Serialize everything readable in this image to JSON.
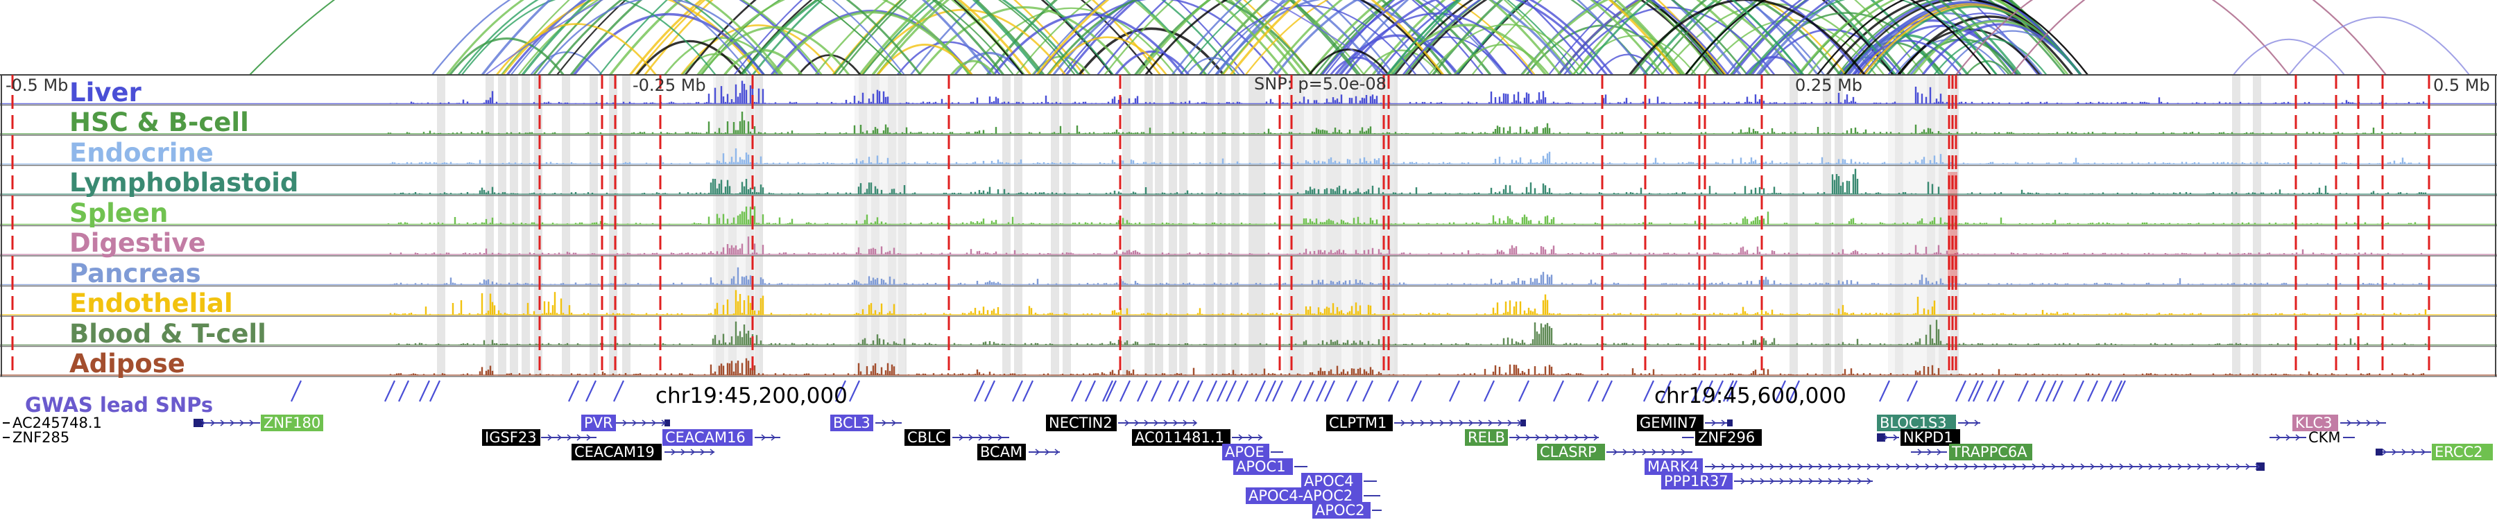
{
  "axis": {
    "ticks": [
      "-0.5 Mb",
      "-0.25 Mb",
      "SNP: p=5.0e-08",
      "0.25 Mb",
      "0.5 Mb"
    ]
  },
  "chromosome_labels": [
    "chr19:45,200,000",
    "chr19:45,600,000"
  ],
  "tracks": [
    {
      "name": "Liver",
      "color": "#4a4fd6"
    },
    {
      "name": "HSC & B-cell",
      "color": "#4f9a44"
    },
    {
      "name": "Endocrine",
      "color": "#8fb7ea"
    },
    {
      "name": "Lymphoblastoid",
      "color": "#3a8a72"
    },
    {
      "name": "Spleen",
      "color": "#70c250"
    },
    {
      "name": "Digestive",
      "color": "#c27ca4"
    },
    {
      "name": "Pancreas",
      "color": "#7f9bd6"
    },
    {
      "name": "Endothelial",
      "color": "#f2c20f"
    },
    {
      "name": "Blood & T-cell",
      "color": "#5f8a55"
    },
    {
      "name": "Adipose",
      "color": "#a34e2e"
    }
  ],
  "snp_track": {
    "label": "GWAS lead SNPs",
    "color": "#6a5acd"
  },
  "genes": [
    {
      "name": "AC245748.1",
      "style": "plain"
    },
    {
      "name": "ZNF285",
      "style": "plain"
    },
    {
      "name": "ZNF180",
      "style": "green",
      "bg": "#6fc14f"
    },
    {
      "name": "IGSF23",
      "style": "dark"
    },
    {
      "name": "PVR",
      "style": "blue",
      "bg": "#5b4fd9"
    },
    {
      "name": "CEACAM19",
      "style": "dark"
    },
    {
      "name": "CEACAM16",
      "style": "blue",
      "bg": "#5b4fd9"
    },
    {
      "name": "BCL3",
      "style": "blue",
      "bg": "#5b4fd9"
    },
    {
      "name": "CBLC",
      "style": "dark"
    },
    {
      "name": "BCAM",
      "style": "dark"
    },
    {
      "name": "NECTIN2",
      "style": "dark"
    },
    {
      "name": "AC011481.1",
      "style": "dark"
    },
    {
      "name": "APOE",
      "style": "blue",
      "bg": "#5b4fd9"
    },
    {
      "name": "APOC1",
      "style": "blue",
      "bg": "#5b4fd9"
    },
    {
      "name": "APOC4",
      "style": "blue",
      "bg": "#5b4fd9"
    },
    {
      "name": "APOC4-APOC2",
      "style": "blue",
      "bg": "#5b4fd9"
    },
    {
      "name": "APOC2",
      "style": "blue",
      "bg": "#5b4fd9"
    },
    {
      "name": "CLPTM1",
      "style": "dark"
    },
    {
      "name": "RELB",
      "style": "green",
      "bg": "#4f9a44"
    },
    {
      "name": "CLASRP",
      "style": "green",
      "bg": "#4f9a44"
    },
    {
      "name": "GEMIN7",
      "style": "dark"
    },
    {
      "name": "ZNF296",
      "style": "dark"
    },
    {
      "name": "MARK4",
      "style": "blue",
      "bg": "#5b4fd9"
    },
    {
      "name": "PPP1R37",
      "style": "blue",
      "bg": "#5b4fd9"
    },
    {
      "name": "BLOC1S3",
      "style": "teal",
      "bg": "#3a8a72"
    },
    {
      "name": "NKPD1",
      "style": "dark"
    },
    {
      "name": "TRAPPC6A",
      "style": "green",
      "bg": "#4f9a44"
    },
    {
      "name": "KLC3",
      "style": "pink",
      "bg": "#c27ca4"
    },
    {
      "name": "CKM",
      "style": "plain"
    },
    {
      "name": "ERCC2",
      "style": "green",
      "bg": "#6fc14f"
    }
  ]
}
